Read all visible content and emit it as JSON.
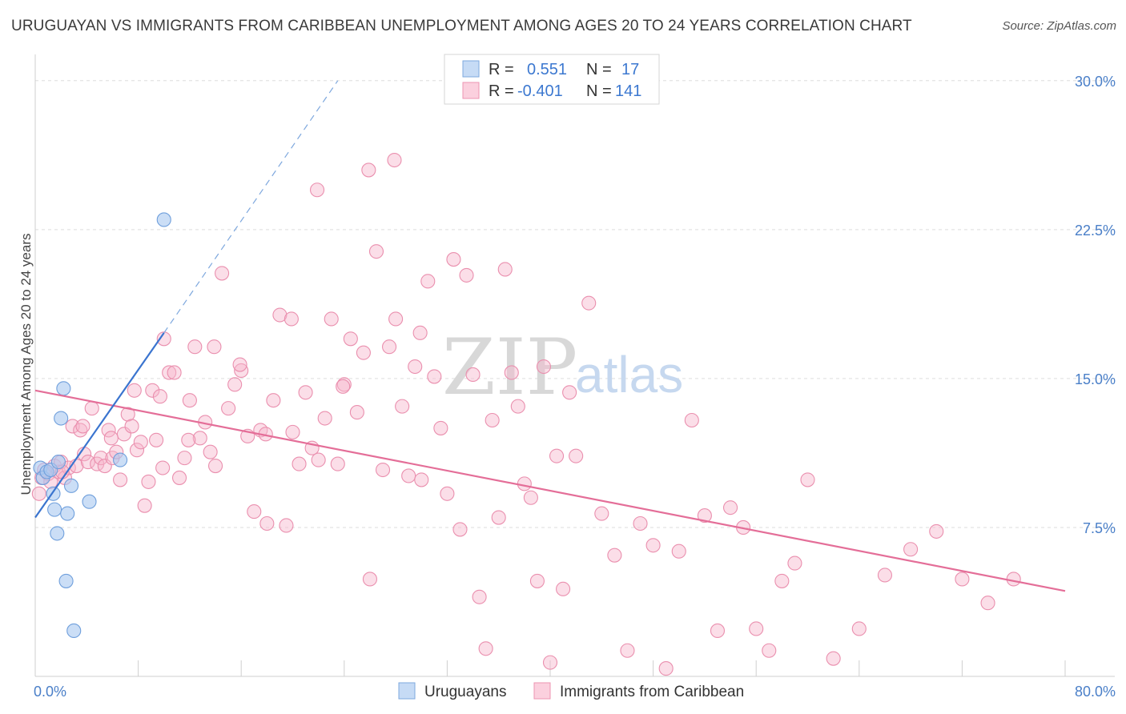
{
  "title": "URUGUAYAN VS IMMIGRANTS FROM CARIBBEAN UNEMPLOYMENT AMONG AGES 20 TO 24 YEARS CORRELATION CHART",
  "source": "Source: ZipAtlas.com",
  "watermark": {
    "zip": "ZIP",
    "atlas": "atlas"
  },
  "legend": {
    "rows": [
      {
        "r_label": "R =",
        "r_value": "0.551",
        "n_label": "N =",
        "n_value": "17",
        "color": "#a9c8f0"
      },
      {
        "r_label": "R =",
        "r_value": "-0.401",
        "n_label": "N =",
        "n_value": "141",
        "color": "#f7b6cb"
      }
    ]
  },
  "bottom_legend": [
    {
      "label": "Uruguayans",
      "color": "#a9c8f0"
    },
    {
      "label": "Immigrants from Caribbean",
      "color": "#f7b6cb"
    }
  ],
  "chart_data": {
    "type": "scatter",
    "title": "URUGUAYAN VS IMMIGRANTS FROM CARIBBEAN UNEMPLOYMENT AMONG AGES 20 TO 24 YEARS CORRELATION CHART",
    "xlabel": "",
    "ylabel": "Unemployment Among Ages 20 to 24 years",
    "xlim": [
      0,
      80
    ],
    "ylim": [
      0,
      31
    ],
    "x_tick_labels": [
      "0.0%",
      "80.0%"
    ],
    "y_ticks": [
      7.5,
      15.0,
      22.5,
      30.0
    ],
    "y_tick_labels": [
      "7.5%",
      "15.0%",
      "22.5%",
      "30.0%"
    ],
    "grid": true,
    "series": [
      {
        "name": "Uruguayans",
        "color": "#a9c8f0",
        "stroke": "#6f9fdc",
        "line_color": "#3a74cf",
        "trend": {
          "x": [
            0.0,
            10.0
          ],
          "y": [
            8.0,
            17.3
          ]
        },
        "trend_dashed": {
          "x": [
            10.0,
            23.5
          ],
          "y": [
            17.3,
            30.0
          ]
        },
        "x": [
          0.4,
          0.6,
          0.9,
          1.2,
          1.4,
          1.5,
          1.7,
          1.8,
          2.0,
          2.2,
          2.4,
          2.5,
          2.8,
          3.0,
          4.2,
          6.6,
          10.0
        ],
        "y": [
          10.5,
          10.0,
          10.3,
          10.4,
          9.2,
          8.4,
          7.2,
          10.8,
          13.0,
          14.5,
          4.8,
          8.2,
          9.6,
          2.3,
          8.8,
          10.9,
          23.0
        ]
      },
      {
        "name": "Immigrants from Caribbean",
        "color": "#f7b6cb",
        "stroke": "#ea8fae",
        "line_color": "#e46e98",
        "trend": {
          "x": [
            0.0,
            80.0
          ],
          "y": [
            14.4,
            4.3
          ]
        },
        "x": [
          0.3,
          0.5,
          0.7,
          1.0,
          1.2,
          1.5,
          1.8,
          2.0,
          2.3,
          2.6,
          2.9,
          3.2,
          3.5,
          3.8,
          4.1,
          4.4,
          4.8,
          5.1,
          5.4,
          5.7,
          6.0,
          6.3,
          6.6,
          6.9,
          7.2,
          7.5,
          7.9,
          8.2,
          8.5,
          8.8,
          9.1,
          9.4,
          9.7,
          10.0,
          10.4,
          10.8,
          11.2,
          11.6,
          12.0,
          12.4,
          12.8,
          13.2,
          13.6,
          14.0,
          14.5,
          15.0,
          15.5,
          16.0,
          16.5,
          17.0,
          17.5,
          18.0,
          18.5,
          19.0,
          19.5,
          20.0,
          20.5,
          21.0,
          21.5,
          22.0,
          22.5,
          23.0,
          23.5,
          24.0,
          24.5,
          25.0,
          25.5,
          26.0,
          26.5,
          27.0,
          27.5,
          28.0,
          28.5,
          29.0,
          29.5,
          30.0,
          30.5,
          31.0,
          31.5,
          32.0,
          32.5,
          33.0,
          33.5,
          34.0,
          34.5,
          35.0,
          35.5,
          36.0,
          36.5,
          37.0,
          37.5,
          38.0,
          38.5,
          39.0,
          39.5,
          40.0,
          40.5,
          41.0,
          41.5,
          42.0,
          43.0,
          44.0,
          45.0,
          46.0,
          47.0,
          48.0,
          49.0,
          50.0,
          51.0,
          52.0,
          53.0,
          54.0,
          55.0,
          56.0,
          57.0,
          58.0,
          59.0,
          60.0,
          62.0,
          64.0,
          66.0,
          68.0,
          70.0,
          72.0,
          74.0,
          76.0,
          2.1,
          3.7,
          5.9,
          7.7,
          9.9,
          11.9,
          13.9,
          15.9,
          17.9,
          19.9,
          21.9,
          23.9,
          25.9,
          27.9,
          29.9
        ],
        "y": [
          9.2,
          10.0,
          10.4,
          10.2,
          9.8,
          10.6,
          10.3,
          10.8,
          10.0,
          10.5,
          12.6,
          10.6,
          12.4,
          11.2,
          10.8,
          13.5,
          10.7,
          11.0,
          10.6,
          12.4,
          11.0,
          11.3,
          9.9,
          12.2,
          13.2,
          12.6,
          11.4,
          11.8,
          8.6,
          9.8,
          14.4,
          11.9,
          14.1,
          17.0,
          15.3,
          15.3,
          10.0,
          11.0,
          13.9,
          16.6,
          12.0,
          12.8,
          11.3,
          10.6,
          20.3,
          13.5,
          14.7,
          15.4,
          12.1,
          8.3,
          12.4,
          7.7,
          13.9,
          18.2,
          7.6,
          12.3,
          10.7,
          14.3,
          11.5,
          10.9,
          13.0,
          18.0,
          10.7,
          14.7,
          17.0,
          13.3,
          16.3,
          4.9,
          21.4,
          10.4,
          16.6,
          18.0,
          13.6,
          10.1,
          15.6,
          9.9,
          19.9,
          15.1,
          12.5,
          9.2,
          21.0,
          7.4,
          20.2,
          15.2,
          4.0,
          1.4,
          12.9,
          8.0,
          20.5,
          15.3,
          13.6,
          9.7,
          9.0,
          4.8,
          15.6,
          0.7,
          11.1,
          4.4,
          14.3,
          11.1,
          18.8,
          8.2,
          6.1,
          1.3,
          7.7,
          6.6,
          0.4,
          6.3,
          12.9,
          8.1,
          2.3,
          8.5,
          7.5,
          2.4,
          1.3,
          4.8,
          5.7,
          9.9,
          0.9,
          2.4,
          5.1,
          6.4,
          7.3,
          4.9,
          3.7,
          4.9,
          10.3,
          12.6,
          12.0,
          14.4,
          10.5,
          11.9,
          16.6,
          15.7,
          12.2,
          18.0,
          24.5,
          14.6,
          25.5,
          26.0,
          17.3
        ]
      }
    ]
  }
}
